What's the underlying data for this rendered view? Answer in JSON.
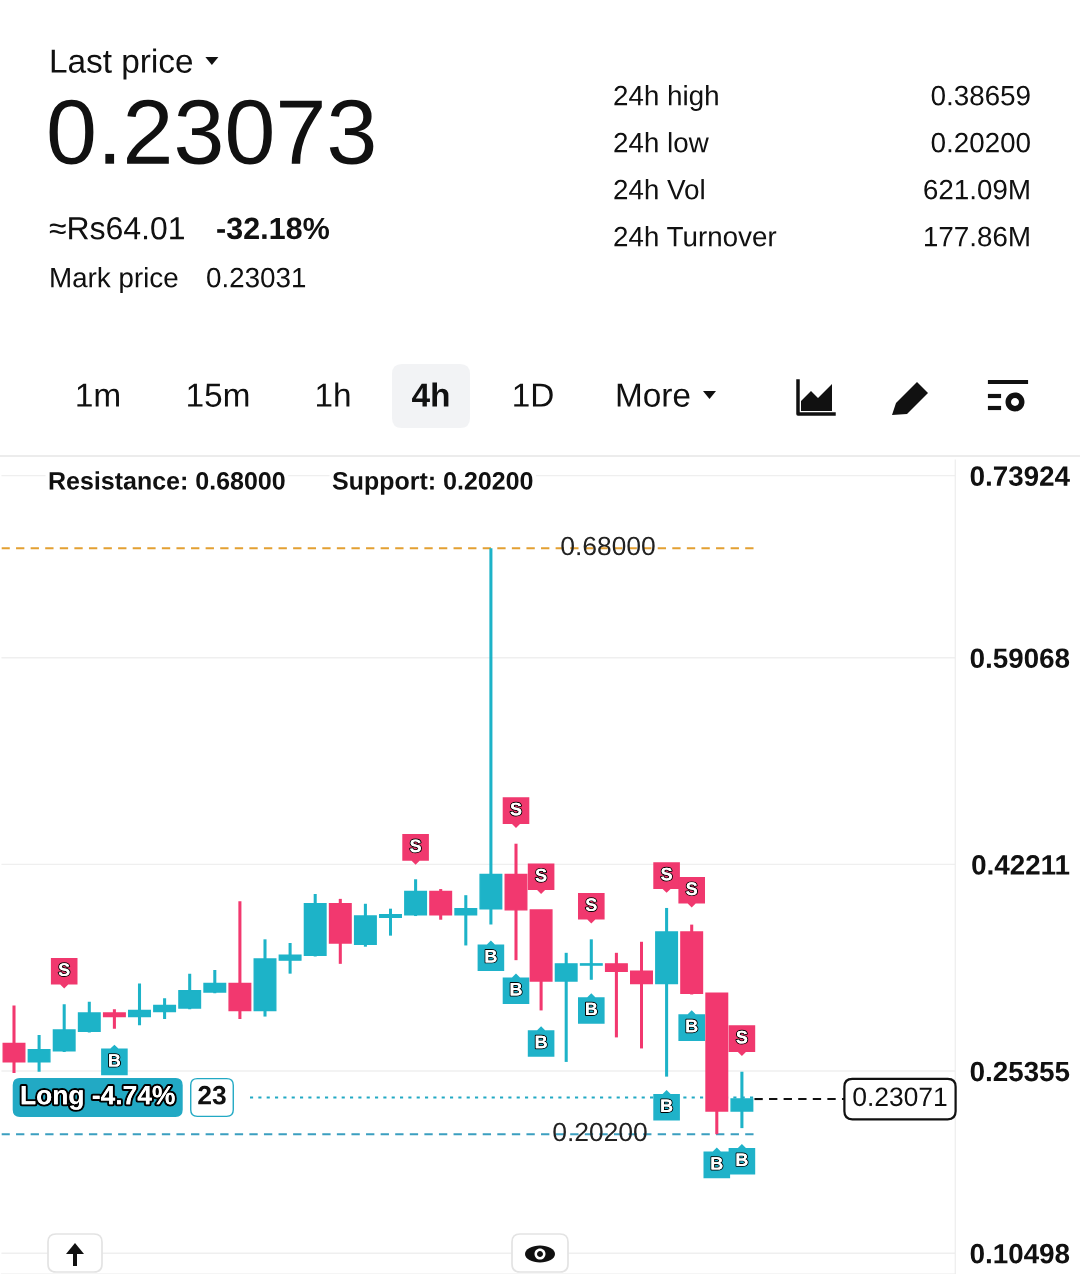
{
  "chart_data": {
    "type": "candlestick",
    "categories": [
      null,
      null,
      null,
      null,
      null,
      null,
      null,
      null,
      null,
      null,
      null,
      null,
      null,
      null,
      null,
      null,
      null,
      null,
      null,
      null,
      null,
      null,
      null,
      null,
      null,
      null,
      null,
      null,
      null,
      null,
      null,
      null,
      null,
      null,
      null,
      null,
      null,
      null
    ],
    "ohlc": [
      [
        0.276,
        0.307,
        0.252,
        0.261
      ],
      [
        0.261,
        0.283,
        0.253,
        0.271
      ],
      [
        0.27,
        0.308,
        0.269,
        0.287
      ],
      [
        0.286,
        0.31,
        0.285,
        0.301
      ],
      [
        0.301,
        0.304,
        0.288,
        0.298
      ],
      [
        0.298,
        0.325,
        0.291,
        0.303
      ],
      [
        0.302,
        0.313,
        0.296,
        0.307
      ],
      [
        0.305,
        0.333,
        0.304,
        0.319
      ],
      [
        0.318,
        0.336,
        0.317,
        0.325
      ],
      [
        0.325,
        0.392,
        0.296,
        0.303
      ],
      [
        0.303,
        0.361,
        0.298,
        0.345
      ],
      [
        0.344,
        0.358,
        0.333,
        0.348
      ],
      [
        0.348,
        0.398,
        0.347,
        0.39
      ],
      [
        0.39,
        0.394,
        0.341,
        0.358
      ],
      [
        0.357,
        0.39,
        0.355,
        0.38
      ],
      [
        0.379,
        0.386,
        0.364,
        0.381
      ],
      [
        0.381,
        0.41,
        0.38,
        0.4
      ],
      [
        0.4,
        0.402,
        0.377,
        0.381
      ],
      [
        0.381,
        0.397,
        0.356,
        0.386
      ],
      [
        0.386,
        0.68,
        0.373,
        0.414
      ],
      [
        0.414,
        0.439,
        0.344,
        0.385
      ],
      [
        0.385,
        0.385,
        0.303,
        0.327
      ],
      [
        0.327,
        0.35,
        0.261,
        0.341
      ],
      [
        0.34,
        0.361,
        0.328,
        0.341
      ],
      [
        0.341,
        0.35,
        0.281,
        0.335
      ],
      [
        0.335,
        0.359,
        0.272,
        0.325
      ],
      [
        0.325,
        0.38659,
        0.249,
        0.367
      ],
      [
        0.367,
        0.373,
        0.316,
        0.317
      ],
      [
        0.317,
        0.317,
        0.202,
        0.221
      ],
      [
        0.221,
        0.253,
        0.207,
        0.23071
      ],
      null,
      null,
      null,
      null,
      null,
      null,
      null,
      null
    ],
    "colors": [
      "#f2386f",
      "#1db3c8",
      "#1db3c8",
      "#1db3c8",
      "#f2386f",
      "#1db3c8",
      "#1db3c8",
      "#1db3c8",
      "#1db3c8",
      "#f2386f",
      "#1db3c8",
      "#1db3c8",
      "#1db3c8",
      "#f2386f",
      "#1db3c8",
      "#1db3c8",
      "#1db3c8",
      "#f2386f",
      "#1db3c8",
      "#1db3c8",
      "#f2386f",
      "#f2386f",
      "#1db3c8",
      "#1db3c8",
      "#f2386f",
      "#f2386f",
      "#1db3c8",
      "#f2386f",
      "#f2386f",
      "#1db3c8",
      null,
      null,
      null,
      null,
      null,
      null,
      null,
      null
    ],
    "series": [
      {
        "type": "scatter",
        "marker": "square",
        "color": "#f0386e",
        "values": [
          null,
          null,
          0.335,
          null,
          null,
          null,
          null,
          null,
          null,
          null,
          null,
          null,
          null,
          null,
          null,
          null,
          0.436,
          null,
          null,
          null,
          0.466,
          0.412,
          null,
          0.388,
          null,
          null,
          0.413,
          0.401,
          null,
          0.28,
          null,
          null,
          null,
          null,
          null,
          null,
          null,
          null
        ],
        "value_labels": [
          null,
          null,
          "S",
          null,
          null,
          null,
          null,
          null,
          null,
          null,
          null,
          null,
          null,
          null,
          null,
          null,
          "S",
          null,
          null,
          null,
          "S",
          "S",
          null,
          "S",
          null,
          null,
          "S",
          "S",
          null,
          "S",
          null,
          null,
          null,
          null,
          null,
          null,
          null,
          null
        ]
      },
      {
        "type": "scatter",
        "marker": "square",
        "color": "#1fb2c9",
        "values": [
          null,
          null,
          null,
          null,
          0.261,
          null,
          null,
          null,
          null,
          null,
          null,
          null,
          null,
          null,
          null,
          null,
          null,
          null,
          null,
          0.346,
          0.319,
          0.276,
          null,
          0.303,
          null,
          null,
          0.224,
          0.289,
          0.177,
          0.18,
          null,
          null,
          null,
          null,
          null,
          null,
          null,
          null
        ],
        "value_labels": [
          null,
          null,
          null,
          null,
          "B",
          null,
          null,
          null,
          null,
          null,
          null,
          null,
          null,
          null,
          null,
          null,
          null,
          null,
          null,
          "B",
          "B",
          "B",
          null,
          "B",
          null,
          null,
          "B",
          "B",
          "B",
          "B",
          null,
          null,
          null,
          null,
          null,
          null,
          null,
          null
        ]
      }
    ],
    "ylim": [
      0.088,
      0.752
    ],
    "yticks": [
      0.10498,
      0.25355,
      0.42211,
      0.59068,
      0.73924
    ],
    "grid": "y",
    "tick_labels": "y",
    "ref_lines": [
      {
        "axis": "y",
        "value": 0.68,
        "label": "0.68000",
        "color": "#e3a032",
        "line_style": "dashed"
      },
      {
        "axis": "y",
        "value": 0.202,
        "label": "0.20200",
        "color": "#3b9fc0",
        "line_style": "dashed"
      },
      {
        "axis": "y",
        "value": 0.23071,
        "label": "0.23071",
        "color": "#111111",
        "line_style": "dashed"
      },
      {
        "axis": "y",
        "value": 0.232,
        "label": "Long -4.74%",
        "color": "#22a9c4",
        "line_style": "dotted"
      }
    ],
    "annotations": [
      "Last price",
      "0.23073",
      "≈Rs64.01",
      "-32.18%",
      "Mark price",
      "0.23031",
      "24h high",
      "0.38659",
      "24h low",
      "0.20200",
      "24h Vol",
      "621.09M",
      "24h Turnover",
      "177.86M",
      "1m",
      "15m",
      "1h",
      "4h",
      "1D",
      "More",
      "Resistance: 0.68000",
      "Support: 0.20200",
      "23"
    ]
  }
}
